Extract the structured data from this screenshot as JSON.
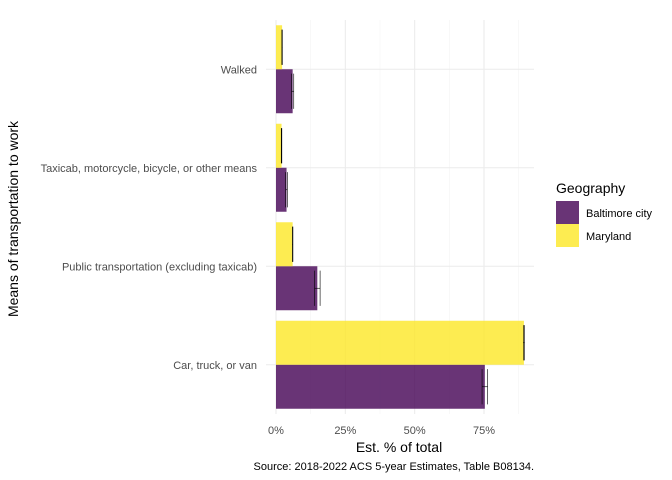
{
  "chart_data": {
    "type": "bar",
    "orientation": "horizontal",
    "categories": [
      "Car, truck, or van",
      "Public transportation (excluding taxicab)",
      "Taxicab, motorcycle, bicycle, or other means",
      "Walked"
    ],
    "series": [
      {
        "name": "Baltimore city",
        "color": "#440154",
        "values": [
          75.3,
          14.9,
          3.8,
          6.0
        ],
        "error": [
          1.0,
          1.0,
          0.3,
          0.4
        ]
      },
      {
        "name": "Maryland",
        "color": "#FDE725",
        "values": [
          89.4,
          6.0,
          2.0,
          2.2
        ],
        "error": [
          0.2,
          0.1,
          0.1,
          0.1
        ]
      }
    ],
    "xlabel": "Est. % of total",
    "ylabel": "Means of transportation to work",
    "xlim": [
      0,
      94
    ],
    "xticks": [
      0,
      25,
      50,
      75
    ],
    "xtick_labels": [
      "0%",
      "25%",
      "50%",
      "75%"
    ],
    "legend_title": "Geography",
    "legend_position": "right",
    "grid": true,
    "caption": "Source: 2018-2022 ACS 5-year Estimates, Table B08134."
  }
}
